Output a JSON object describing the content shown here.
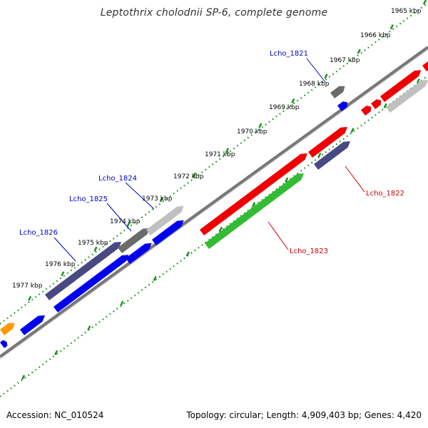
{
  "title": "Leptothrix cholodnii SP-6, complete genome",
  "accession": "Accession: NC_010524",
  "summary": "Topology: circular; Length: 4,909,403 bp; Genes: 4,420",
  "colors": {
    "backbone": "#777777",
    "tick_green": "#1a8f1a",
    "label_blue": "#0000cc",
    "label_red": "#cc0000",
    "gene_blue": "#0000ee",
    "gene_navy": "#484882",
    "gene_gray": "#6b6b6b",
    "gene_lightgray": "#c0c0c0",
    "gene_red": "#ee0000",
    "gene_green": "#33bb33",
    "gene_orange": "#ff9900"
  },
  "kbp_ticks": [
    "1965 kbp",
    "1966 kbp",
    "1967 kbp",
    "1968 kbp",
    "1969 kbp",
    "1970 kbp",
    "1971 kbp",
    "1972 kbp",
    "1973 kbp",
    "1974 kbp",
    "1975 kbp",
    "1976 kbp",
    "1977 kbp"
  ],
  "gene_labels": [
    {
      "text": "Lcho_1821",
      "color": "blue"
    },
    {
      "text": "Lcho_1822",
      "color": "red"
    },
    {
      "text": "Lcho_1823",
      "color": "red"
    },
    {
      "text": "Lcho_1824",
      "color": "blue"
    },
    {
      "text": "Lcho_1825",
      "color": "blue"
    },
    {
      "text": "Lcho_1826",
      "color": "blue"
    }
  ]
}
